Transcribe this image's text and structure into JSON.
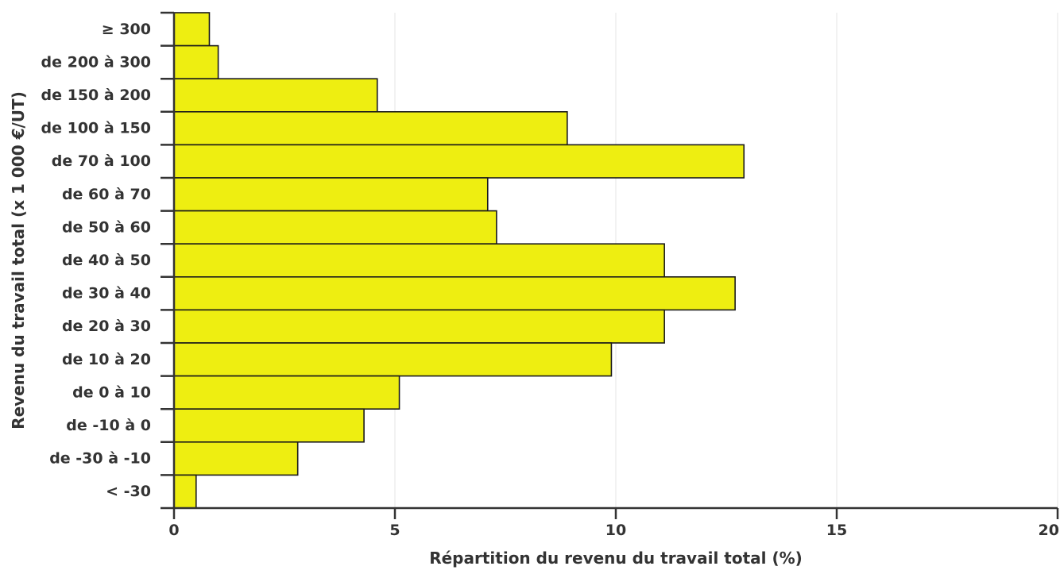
{
  "chart_data": {
    "type": "bar",
    "orientation": "horizontal",
    "xlabel": "Répartition du revenu du travail total (%)",
    "ylabel": "Revenu du travail total (x 1 000 €/UT)",
    "xlim": [
      0,
      20
    ],
    "xticks": [
      0,
      5,
      10,
      15,
      20
    ],
    "grid": true,
    "bar_color": "#eeee11",
    "categories": [
      "≥ 300",
      "de 200 à 300",
      "de 150 à 200",
      "de 100 à 150",
      "de 70 à 100",
      "de 60 à 70",
      "de 50 à 60",
      "de 40 à 50",
      "de 30 à 40",
      "de 20 à 30",
      "de 10 à 20",
      "de 0 à 10",
      "de -10 à 0",
      "de -30 à -10",
      "< -30"
    ],
    "values": [
      0.8,
      1.0,
      4.6,
      8.9,
      12.9,
      7.1,
      7.3,
      11.1,
      12.7,
      11.1,
      9.9,
      5.1,
      4.3,
      2.8,
      0.5
    ]
  }
}
